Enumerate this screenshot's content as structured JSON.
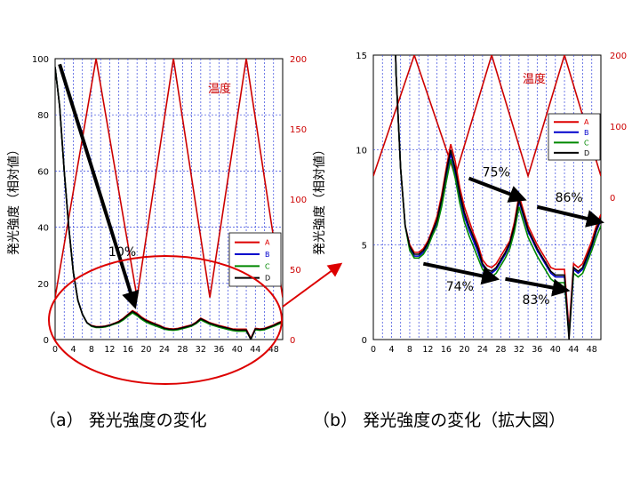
{
  "chart_data": [
    {
      "type": "line",
      "panel": "a",
      "caption": "（a） 発光強度の変化",
      "ylabel": "発光強度（相対値）",
      "ylabel_right": "発光強度（相対値）",
      "xlim": [
        0,
        50
      ],
      "ylim": [
        0,
        100
      ],
      "y2lim": [
        0,
        200
      ],
      "xticks": [
        "0",
        "4",
        "8",
        "12",
        "16",
        "20",
        "24",
        "28",
        "32",
        "36",
        "40",
        "44",
        "48"
      ],
      "yticks": [
        "0",
        "20",
        "40",
        "60",
        "80",
        "100"
      ],
      "y2ticks": [
        "0",
        "50",
        "100",
        "150",
        "200"
      ],
      "grid": true,
      "legend_position": "right",
      "x": [
        0,
        1,
        2,
        3,
        4,
        5,
        6,
        7,
        8,
        9,
        10,
        11,
        12,
        13,
        14,
        15,
        16,
        17,
        18,
        19,
        20,
        21,
        22,
        23,
        24,
        25,
        26,
        27,
        28,
        29,
        30,
        31,
        32,
        33,
        34,
        35,
        36,
        37,
        38,
        39,
        40,
        41,
        42,
        43,
        44,
        45,
        46,
        47,
        48,
        49,
        50
      ],
      "series": [
        {
          "name": "A",
          "color": "#dd0000",
          "values": [
            97,
            83,
            60,
            40,
            24,
            14,
            9,
            6,
            5,
            4.6,
            4.6,
            4.8,
            5.2,
            5.8,
            6.5,
            7.6,
            9,
            10.3,
            9.4,
            8,
            7,
            6.3,
            5.6,
            5,
            4.2,
            3.9,
            3.8,
            4,
            4.4,
            4.8,
            5.2,
            6.2,
            7.6,
            6.8,
            6,
            5.5,
            5,
            4.6,
            4.2,
            3.8,
            3.7,
            3.7,
            3.7,
            0.5,
            4,
            3.8,
            4,
            4.6,
            5.2,
            6,
            6.6
          ]
        },
        {
          "name": "B",
          "color": "#0000cc",
          "values": [
            97,
            83,
            60,
            40,
            24,
            14,
            9,
            6,
            4.8,
            4.4,
            4.4,
            4.6,
            5,
            5.6,
            6.2,
            7.3,
            8.6,
            9.8,
            8.8,
            7.5,
            6.5,
            5.8,
            5.2,
            4.6,
            3.9,
            3.6,
            3.5,
            3.7,
            4.1,
            4.5,
            5,
            5.9,
            7.3,
            6.5,
            5.7,
            5.2,
            4.7,
            4.3,
            3.9,
            3.5,
            3.3,
            3.3,
            3.3,
            0.2,
            3.7,
            3.5,
            3.7,
            4.3,
            4.9,
            5.7,
            6.3
          ]
        },
        {
          "name": "C",
          "color": "#008800",
          "values": [
            97,
            83,
            60,
            40,
            24,
            14,
            9,
            6,
            4.7,
            4.3,
            4.3,
            4.5,
            4.9,
            5.5,
            6,
            7,
            8.3,
            9.5,
            8.5,
            7.2,
            6.2,
            5.5,
            4.9,
            4.3,
            3.7,
            3.4,
            3.3,
            3.5,
            3.9,
            4.3,
            4.8,
            5.7,
            7,
            6.2,
            5.4,
            4.9,
            4.4,
            4,
            3.6,
            3.2,
            3,
            3,
            3,
            0.2,
            3.5,
            3.3,
            3.5,
            4.1,
            4.7,
            5.4,
            6
          ]
        },
        {
          "name": "D",
          "color": "#000000",
          "values": [
            97,
            83,
            60,
            40,
            24,
            14,
            9,
            6,
            4.9,
            4.5,
            4.5,
            4.7,
            5.1,
            5.7,
            6.3,
            7.4,
            8.8,
            10,
            9,
            7.7,
            6.7,
            6,
            5.4,
            4.8,
            4,
            3.7,
            3.6,
            3.8,
            4.2,
            4.6,
            5.1,
            6,
            7.4,
            6.6,
            5.8,
            5.3,
            4.8,
            4.4,
            4,
            3.6,
            3.4,
            3.4,
            3.4,
            0,
            3.8,
            3.6,
            3.8,
            4.4,
            5,
            5.8,
            6.4
          ]
        }
      ],
      "temperature": {
        "name": "温度",
        "color": "#cc0000",
        "axis": "right",
        "x": [
          0,
          9,
          18,
          26,
          34,
          42,
          50
        ],
        "values": [
          30,
          200,
          30,
          200,
          30,
          200,
          30
        ]
      },
      "arrows": [
        {
          "from_x": 1,
          "from_y": 98,
          "to_x": 17.5,
          "to_y": 12,
          "label": "10%"
        }
      ]
    },
    {
      "type": "line",
      "panel": "b",
      "caption": "（b） 発光強度の変化（拡大図）",
      "xlim": [
        0,
        50
      ],
      "ylim": [
        0,
        15
      ],
      "y2lim": [
        -200,
        200
      ],
      "xticks": [
        "0",
        "4",
        "8",
        "12",
        "16",
        "20",
        "24",
        "28",
        "32",
        "36",
        "40",
        "44",
        "48"
      ],
      "yticks": [
        "0",
        "5",
        "10",
        "15"
      ],
      "y2ticks": [
        "0",
        "100",
        "200"
      ],
      "grid": true,
      "legend_position": "top-right",
      "x": [
        0,
        1,
        2,
        3,
        4,
        5,
        6,
        7,
        8,
        9,
        10,
        11,
        12,
        13,
        14,
        15,
        16,
        17,
        18,
        19,
        20,
        21,
        22,
        23,
        24,
        25,
        26,
        27,
        28,
        29,
        30,
        31,
        32,
        33,
        34,
        35,
        36,
        37,
        38,
        39,
        40,
        41,
        42,
        43,
        44,
        45,
        46,
        47,
        48,
        49,
        50
      ],
      "series": [
        {
          "name": "A",
          "color": "#dd0000",
          "values": [
            97,
            83,
            60,
            40,
            24,
            14,
            9,
            6,
            5,
            4.6,
            4.6,
            4.8,
            5.2,
            5.8,
            6.5,
            7.6,
            9,
            10.3,
            9.4,
            8,
            7,
            6.3,
            5.6,
            5,
            4.2,
            3.9,
            3.8,
            4,
            4.4,
            4.8,
            5.2,
            6.2,
            7.6,
            6.8,
            6,
            5.5,
            5,
            4.6,
            4.2,
            3.8,
            3.7,
            3.7,
            3.7,
            0.5,
            4,
            3.8,
            4,
            4.6,
            5.2,
            6,
            6.6
          ]
        },
        {
          "name": "B",
          "color": "#0000cc",
          "values": [
            97,
            83,
            60,
            40,
            24,
            14,
            9,
            6,
            4.8,
            4.4,
            4.4,
            4.6,
            5,
            5.6,
            6.2,
            7.3,
            8.6,
            9.8,
            8.8,
            7.5,
            6.5,
            5.8,
            5.2,
            4.6,
            3.9,
            3.6,
            3.5,
            3.7,
            4.1,
            4.5,
            5,
            5.9,
            7.3,
            6.5,
            5.7,
            5.2,
            4.7,
            4.3,
            3.9,
            3.5,
            3.3,
            3.3,
            3.3,
            0.2,
            3.7,
            3.5,
            3.7,
            4.3,
            4.9,
            5.7,
            6.3
          ]
        },
        {
          "name": "C",
          "color": "#008800",
          "values": [
            97,
            83,
            60,
            40,
            24,
            14,
            9,
            6,
            4.7,
            4.3,
            4.3,
            4.5,
            4.9,
            5.5,
            6,
            7,
            8.3,
            9.5,
            8.5,
            7.2,
            6.2,
            5.5,
            4.9,
            4.3,
            3.7,
            3.4,
            3.3,
            3.5,
            3.9,
            4.3,
            4.8,
            5.7,
            7,
            6.2,
            5.4,
            4.9,
            4.4,
            4,
            3.6,
            3.2,
            3,
            3,
            3,
            0.2,
            3.5,
            3.3,
            3.5,
            4.1,
            4.7,
            5.4,
            6
          ]
        },
        {
          "name": "D",
          "color": "#000000",
          "values": [
            97,
            83,
            60,
            40,
            24,
            14,
            9,
            6,
            4.9,
            4.5,
            4.5,
            4.7,
            5.1,
            5.7,
            6.3,
            7.4,
            8.8,
            10,
            9,
            7.7,
            6.7,
            6,
            5.4,
            4.8,
            4,
            3.7,
            3.6,
            3.8,
            4.2,
            4.6,
            5.1,
            6,
            7.4,
            6.6,
            5.8,
            5.3,
            4.8,
            4.4,
            4,
            3.6,
            3.4,
            3.4,
            3.4,
            0,
            3.8,
            3.6,
            3.8,
            4.4,
            5,
            5.8,
            6.4
          ]
        }
      ],
      "temperature": {
        "name": "温度",
        "color": "#cc0000",
        "axis": "right",
        "x": [
          0,
          9,
          18,
          26,
          34,
          42,
          50
        ],
        "values": [
          30,
          200,
          30,
          200,
          30,
          200,
          30
        ]
      },
      "arrows": [
        {
          "from_x": 21,
          "from_y": 8.5,
          "to_x": 33,
          "to_y": 7.4,
          "label": "75%"
        },
        {
          "from_x": 36,
          "from_y": 7,
          "to_x": 50,
          "to_y": 6.2,
          "label": "86%"
        },
        {
          "from_x": 11,
          "from_y": 4,
          "to_x": 27,
          "to_y": 3.2,
          "label": "74%"
        },
        {
          "from_x": 29,
          "from_y": 3.2,
          "to_x": 42.5,
          "to_y": 2.6,
          "label": "83%"
        }
      ]
    }
  ]
}
